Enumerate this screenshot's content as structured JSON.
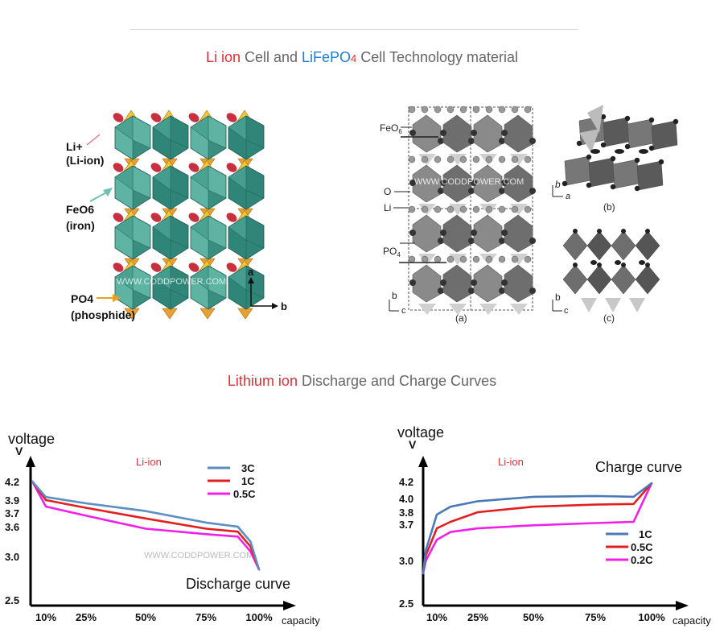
{
  "header": {
    "title1": {
      "part1": "Li ion",
      "part2": " Cell and ",
      "part3": "LiFePO",
      "part3_sub": "4",
      "part4": " Cell Technology material"
    },
    "title2": {
      "part1": "Lithium ion",
      "part2": " Discharge and Charge Curves"
    },
    "colors": {
      "red": "#e0303a",
      "blue": "#1e7fd6",
      "gray": "#666666"
    }
  },
  "structure_left": {
    "labels": {
      "li_line1": "Li+",
      "li_line2": "(Li-ion)",
      "fe_line1": "FeO6",
      "fe_line2": "(iron)",
      "po_line1": "PO4",
      "po_line2": "(phosphide)",
      "axis_a": "a",
      "axis_b": "b"
    },
    "watermark": "WWW.CODDPOWER.COM"
  },
  "structure_right": {
    "labels": {
      "feo6": "FeO",
      "feo6_sub": "6",
      "o": "O",
      "li": "Li",
      "po4": "PO",
      "po4_sub": "4",
      "axis_a_b": "b",
      "axis_a_c": "c",
      "caption_a": "(a)",
      "axis_b_b": "b",
      "axis_b_a": "a",
      "caption_b": "(b)",
      "axis_c_b": "b",
      "axis_c_c": "c",
      "caption_c": "(c)"
    },
    "watermark": "WWW.CODDPOWER.COM"
  },
  "chart_data": [
    {
      "type": "line",
      "title": "Discharge curve",
      "subtitle": "Li-ion",
      "ylabel": "voltage",
      "yunit": "V",
      "xlabel": "capacity",
      "y_ticks": [
        "4.2",
        "3.9",
        "3.7",
        "3.6",
        "3.0",
        "2.5"
      ],
      "x_ticks": [
        "10%",
        "25%",
        "50%",
        "75%",
        "100%"
      ],
      "legend_position": "top-right",
      "watermark": "WWW.CODDPOWER.COM",
      "x": [
        5,
        10,
        25,
        50,
        75,
        90,
        96,
        100
      ],
      "series": [
        {
          "name": "3C",
          "color": "#5b8ec2",
          "values": [
            4.2,
            3.95,
            3.85,
            3.73,
            3.63,
            3.6,
            3.3,
            2.85
          ]
        },
        {
          "name": "1C",
          "color": "#e02020",
          "values": [
            4.2,
            3.9,
            3.78,
            3.66,
            3.56,
            3.5,
            3.2,
            2.85
          ]
        },
        {
          "name": "0.5C",
          "color": "#f020e8",
          "values": [
            4.2,
            3.8,
            3.68,
            3.56,
            3.45,
            3.4,
            3.1,
            2.85
          ]
        }
      ]
    },
    {
      "type": "line",
      "title": "Charge curve",
      "subtitle": "Li-ion",
      "ylabel": "voltage",
      "yunit": "V",
      "xlabel": "capacity",
      "y_ticks": [
        "4.2",
        "4.0",
        "3.8",
        "3.7",
        "3.0",
        "2.5"
      ],
      "x_ticks": [
        "10%",
        "25%",
        "50%",
        "75%",
        "100%"
      ],
      "legend_position": "right",
      "x": [
        5,
        6,
        10,
        15,
        25,
        50,
        75,
        92,
        100
      ],
      "series": [
        {
          "name": "1C",
          "color": "#4a7ab8",
          "values": [
            2.85,
            3.2,
            3.78,
            3.88,
            3.96,
            4.02,
            4.03,
            4.02,
            4.18
          ]
        },
        {
          "name": "0.5C",
          "color": "#e02020",
          "values": [
            2.85,
            3.1,
            3.62,
            3.72,
            3.8,
            3.88,
            3.91,
            3.92,
            4.18
          ]
        },
        {
          "name": "0.2C",
          "color": "#f020e8",
          "values": [
            2.85,
            3.0,
            3.4,
            3.55,
            3.62,
            3.68,
            3.71,
            3.72,
            4.18
          ]
        }
      ]
    }
  ]
}
